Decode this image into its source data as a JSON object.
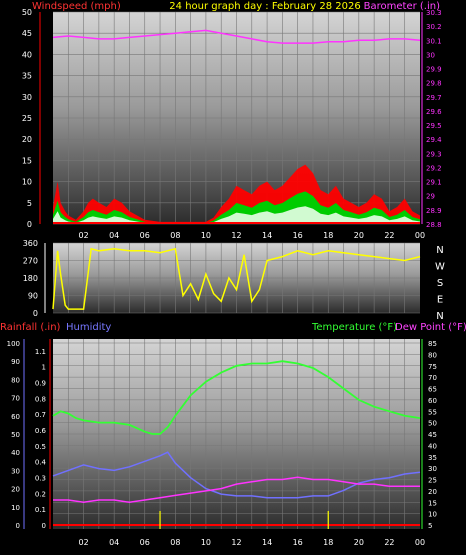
{
  "header": {
    "windspeed_label": "Windspeed (mph)",
    "title": "24 hour graph day : February 28 2026",
    "barometer_label": "Barometer (.in)"
  },
  "footer_labels": {
    "rainfall": "Rainfall (.in)",
    "humidity": "Humidity",
    "temperature": "Temperature (°F)",
    "dewpoint": "Dew Point (°F)"
  },
  "compass": [
    "N",
    "W",
    "S",
    "E",
    "N"
  ],
  "colors": {
    "wind": "#ff0000",
    "gust_fill": "#00cc00",
    "avg_fill": "#e8ffe8",
    "barometer": "#ff33ff",
    "direction": "#ffff00",
    "rain": "#ff0000",
    "rain_ticks": "#ffff00",
    "humidity": "#7070ff",
    "temperature": "#33ff33",
    "dewpoint": "#ff33ff",
    "title": "#ffff00",
    "axis_text": "#ffffff"
  },
  "chart_data": [
    {
      "type": "line",
      "title": "24 hour graph day : February 28 2026",
      "x_ticks": [
        "02",
        "04",
        "06",
        "08",
        "10",
        "12",
        "14",
        "16",
        "18",
        "20",
        "22",
        "00"
      ],
      "xlim": [
        0,
        24
      ],
      "y_left": {
        "label": "Windspeed (mph)",
        "ticks": [
          0,
          5,
          10,
          15,
          20,
          25,
          30,
          35,
          40,
          45,
          50
        ],
        "ylim": [
          0,
          50
        ]
      },
      "y_right": {
        "label": "Barometer (.in)",
        "ticks": [
          "28.8",
          "28.9",
          "29",
          "29.1",
          "29.2",
          "29.3",
          "29.4",
          "29.5",
          "29.6",
          "29.7",
          "29.8",
          "29.9",
          "30",
          "30.1",
          "30.2",
          "30.3"
        ],
        "ylim": [
          28.8,
          30.3
        ]
      },
      "series": [
        {
          "name": "Windspeed (mph)",
          "axis": "left",
          "x": [
            0,
            0.3,
            0.5,
            0.8,
            1,
            1.5,
            2,
            2.3,
            2.6,
            3,
            3.5,
            4,
            4.5,
            5,
            5.5,
            6,
            7,
            8,
            9,
            10,
            10.5,
            11,
            11.5,
            12,
            12.5,
            13,
            13.5,
            14,
            14.5,
            15,
            15.5,
            16,
            16.5,
            17,
            17.5,
            18,
            18.5,
            19,
            19.5,
            20,
            20.5,
            21,
            21.5,
            22,
            22.5,
            23,
            23.5,
            24
          ],
          "y": [
            4,
            10,
            5,
            3,
            2,
            1,
            3,
            5,
            6,
            5,
            4,
            6,
            5,
            3,
            2,
            1,
            0.5,
            0.5,
            0.5,
            0.5,
            1.5,
            4,
            6,
            9,
            8,
            7,
            9,
            10,
            8,
            9,
            11,
            13,
            14,
            12,
            8,
            7,
            9,
            6,
            5,
            4,
            5,
            7,
            6,
            3,
            4,
            6,
            3,
            2
          ]
        },
        {
          "name": "Barometer (.in)",
          "axis": "right",
          "x": [
            0,
            1,
            2,
            3,
            4,
            5,
            6,
            7,
            8,
            9,
            10,
            11,
            12,
            13,
            14,
            15,
            16,
            17,
            18,
            19,
            20,
            21,
            22,
            23,
            24
          ],
          "y": [
            30.12,
            30.13,
            30.12,
            30.11,
            30.11,
            30.12,
            30.13,
            30.14,
            30.15,
            30.16,
            30.17,
            30.15,
            30.13,
            30.11,
            30.09,
            30.08,
            30.08,
            30.08,
            30.09,
            30.09,
            30.1,
            30.1,
            30.11,
            30.11,
            30.1
          ]
        }
      ]
    },
    {
      "type": "line",
      "title": "",
      "x_ticks": [
        "02",
        "04",
        "06",
        "08",
        "10",
        "12",
        "14",
        "16",
        "18",
        "20",
        "22",
        "00"
      ],
      "xlim": [
        0,
        24
      ],
      "y_left": {
        "label": "",
        "ticks": [
          0,
          90,
          180,
          270,
          360
        ],
        "ylim": [
          0,
          360
        ]
      },
      "series": [
        {
          "name": "Wind direction",
          "x": [
            0,
            0.3,
            0.5,
            0.8,
            1,
            2,
            2.5,
            3,
            4,
            5,
            6,
            7,
            8,
            8.5,
            9,
            9.5,
            10,
            10.5,
            11,
            11.5,
            12,
            12.5,
            13,
            13.5,
            14,
            15,
            16,
            17,
            18,
            19,
            20,
            21,
            22,
            23,
            24
          ],
          "y": [
            20,
            320,
            200,
            40,
            20,
            20,
            330,
            320,
            330,
            320,
            320,
            310,
            330,
            90,
            150,
            70,
            200,
            100,
            60,
            180,
            120,
            300,
            60,
            120,
            270,
            290,
            320,
            300,
            320,
            310,
            300,
            290,
            280,
            270,
            290
          ]
        }
      ]
    },
    {
      "type": "line",
      "title": "",
      "x_ticks": [
        "02",
        "04",
        "06",
        "08",
        "10",
        "12",
        "14",
        "16",
        "18",
        "20",
        "22",
        "00"
      ],
      "xlim": [
        0,
        24
      ],
      "y_left_outer": {
        "label": "Humidity",
        "ticks": [
          0,
          10,
          20,
          30,
          40,
          50,
          60,
          70,
          80,
          90,
          100
        ],
        "ylim": [
          0,
          100
        ]
      },
      "y_left_inner": {
        "label": "Rainfall (.in)",
        "ticks": [
          "0",
          "0.1",
          "0.2",
          "0.3",
          "0.4",
          "0.5",
          "0.6",
          "0.7",
          "0.8",
          "0.9",
          "1",
          "1.1"
        ],
        "ylim": [
          0,
          1.15
        ]
      },
      "y_right": {
        "label": "Temperature (°F)",
        "ticks": [
          5,
          10,
          15,
          20,
          25,
          30,
          35,
          40,
          45,
          50,
          55,
          60,
          65,
          70,
          75,
          80,
          85
        ],
        "ylim": [
          5,
          85
        ]
      },
      "series": [
        {
          "name": "Temperature (°F)",
          "axis": "right",
          "x": [
            0,
            0.5,
            1,
            1.5,
            2,
            3,
            4,
            5,
            6,
            6.5,
            7,
            7.5,
            8,
            9,
            10,
            11,
            12,
            13,
            14,
            15,
            16,
            17,
            18,
            19,
            20,
            21,
            22,
            23,
            24
          ],
          "y": [
            53,
            55,
            54,
            52,
            51,
            50,
            50,
            49,
            46,
            45,
            45,
            48,
            53,
            62,
            68,
            72,
            75,
            76,
            76,
            77,
            76,
            74,
            70,
            65,
            60,
            57,
            55,
            53,
            52
          ]
        },
        {
          "name": "Dew Point (°F)",
          "axis": "right",
          "x": [
            0,
            1,
            2,
            3,
            4,
            5,
            6,
            7,
            8,
            9,
            10,
            11,
            12,
            13,
            14,
            15,
            16,
            17,
            18,
            19,
            20,
            21,
            22,
            23,
            24
          ],
          "y": [
            16,
            16,
            15,
            16,
            16,
            15,
            16,
            17,
            18,
            19,
            20,
            21,
            23,
            24,
            25,
            25,
            26,
            25,
            25,
            24,
            23,
            23,
            22,
            22,
            22
          ]
        },
        {
          "name": "Humidity",
          "axis": "left_outer",
          "x": [
            0,
            1,
            2,
            3,
            4,
            5,
            6,
            7,
            7.5,
            8,
            9,
            10,
            11,
            12,
            13,
            14,
            15,
            16,
            17,
            18,
            19,
            20,
            21,
            22,
            23,
            24
          ],
          "y": [
            27,
            30,
            33,
            31,
            30,
            32,
            35,
            38,
            40,
            34,
            26,
            20,
            17,
            16,
            16,
            15,
            15,
            15,
            16,
            16,
            19,
            23,
            25,
            26,
            28,
            29
          ]
        },
        {
          "name": "Rainfall (.in)",
          "axis": "left_inner",
          "x": [
            0,
            24
          ],
          "y": [
            0,
            0
          ]
        }
      ],
      "rain_tick_x": [
        7,
        18
      ]
    }
  ]
}
